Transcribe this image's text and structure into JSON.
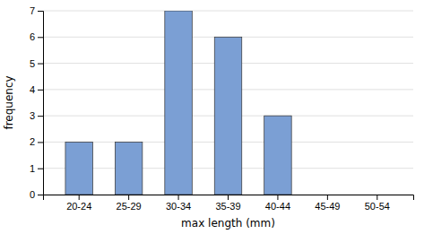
{
  "chart_data": {
    "type": "bar",
    "categories": [
      "20-24",
      "25-29",
      "30-34",
      "35-39",
      "40-44",
      "45-49",
      "50-54"
    ],
    "values": [
      2,
      2,
      7,
      6,
      3,
      0,
      0
    ],
    "color": "#7b9fd4",
    "xlabel": "max length (mm)",
    "ylabel": "frequency",
    "ylim": [
      0,
      7
    ],
    "yticks": [
      0,
      1,
      2,
      3,
      4,
      5,
      6,
      7
    ],
    "grid": true
  }
}
